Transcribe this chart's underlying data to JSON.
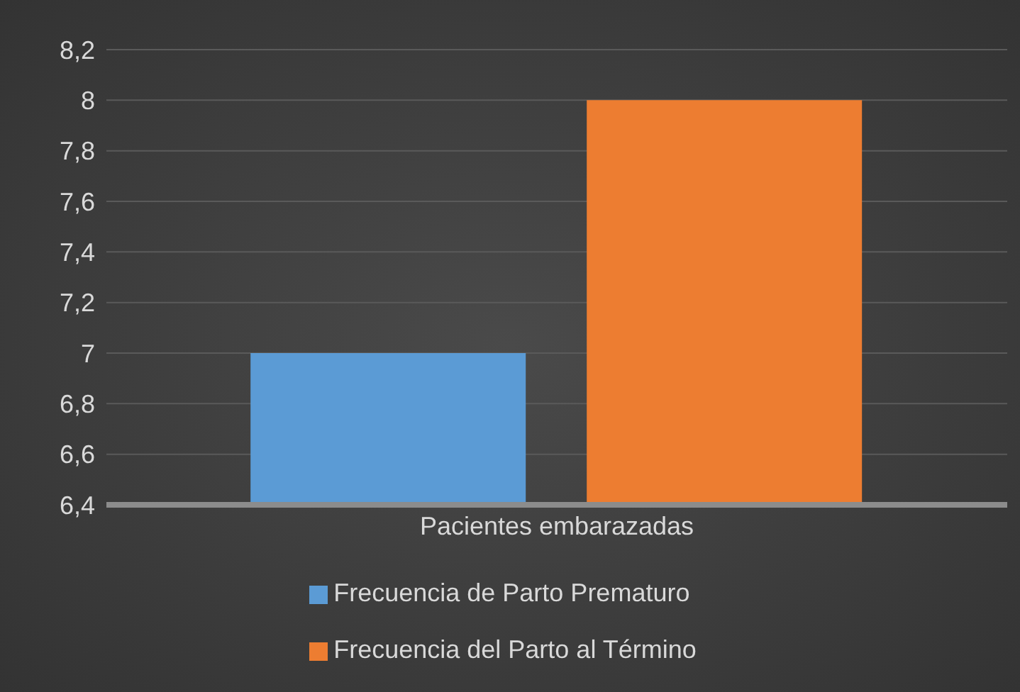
{
  "chart_data": {
    "type": "bar",
    "categories": [
      "Pacientes embarazadas"
    ],
    "series": [
      {
        "name": "Frecuencia de Parto Prematuro",
        "color": "#5b9bd5",
        "values": [
          7
        ]
      },
      {
        "name": "Frecuencia del Parto al Término",
        "color": "#ed7d31",
        "values": [
          8
        ]
      }
    ],
    "ylim": [
      6.4,
      8.2
    ],
    "yticks": [
      {
        "value": 6.4,
        "label": "6,4"
      },
      {
        "value": 6.6,
        "label": "6,6"
      },
      {
        "value": 6.8,
        "label": "6,8"
      },
      7,
      {
        "value": 7.2,
        "label": "7,2"
      },
      {
        "value": 7.4,
        "label": "7,4"
      },
      {
        "value": 7.6,
        "label": "7,6"
      },
      {
        "value": 7.8,
        "label": "7,8"
      },
      8,
      {
        "value": 8.2,
        "label": "8,2"
      }
    ],
    "grid": "y",
    "legend": "bottom"
  }
}
